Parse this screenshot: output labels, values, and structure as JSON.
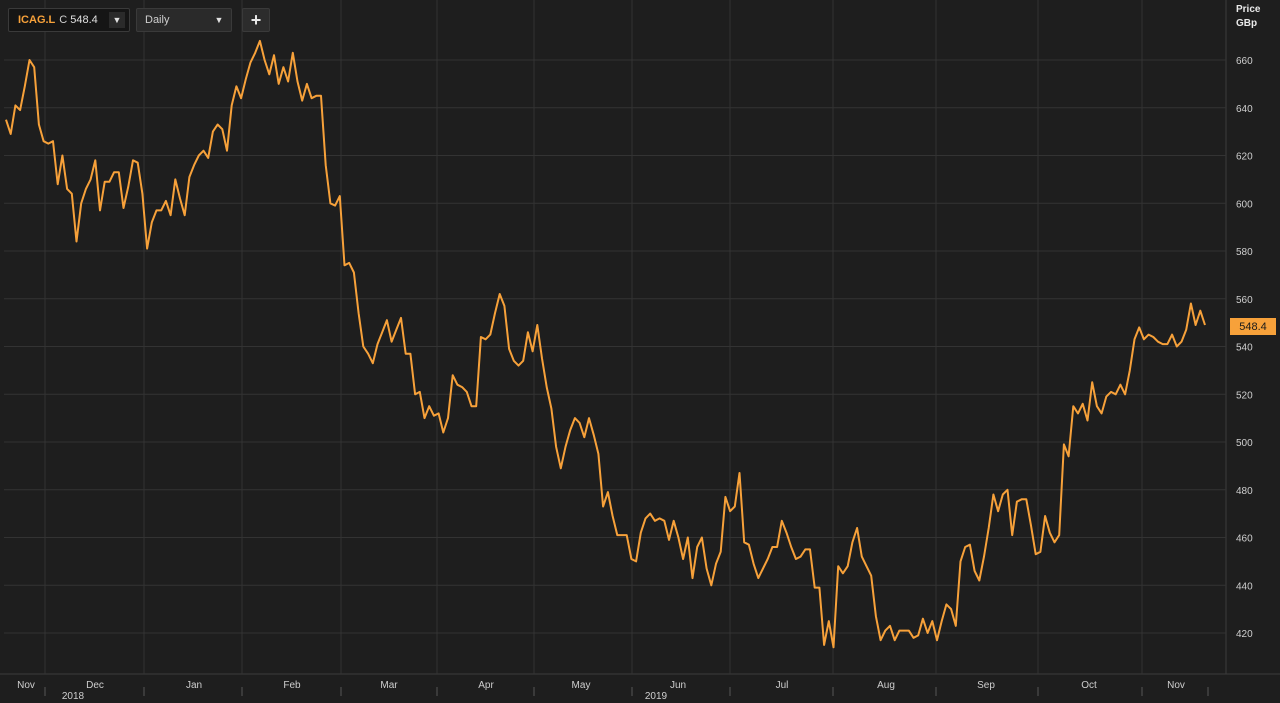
{
  "toolbar": {
    "ticker": "ICAG.L",
    "close_prefix": "C",
    "close_value": "548.4",
    "period": "Daily",
    "add_label": "+"
  },
  "axis": {
    "unit_line1": "Price",
    "unit_line2": "GBp"
  },
  "last_price_label": "548.4",
  "colors": {
    "background": "#1e1e1e",
    "line": "#f7a13a",
    "grid": "#333333"
  },
  "chart_data": {
    "type": "line",
    "ylabel": "Price GBp",
    "ylim": [
      405,
      672
    ],
    "y_ticks": [
      420,
      440,
      460,
      480,
      500,
      520,
      540,
      560,
      580,
      600,
      620,
      640,
      660
    ],
    "x_ticks": [
      "Nov",
      "Dec",
      "Jan",
      "Feb",
      "Mar",
      "Apr",
      "May",
      "Jun",
      "Jul",
      "Aug",
      "Sep",
      "Oct",
      "Nov"
    ],
    "year_labels": [
      {
        "label": "2018",
        "month_index": 1
      },
      {
        "label": "2019",
        "month_index": 7
      }
    ],
    "grid": true,
    "last_value": 548.4,
    "series": [
      {
        "values": [
          635,
          629,
          641,
          639,
          649,
          660,
          657,
          633,
          626,
          625,
          626,
          608,
          620,
          606,
          604,
          584,
          600,
          606,
          610,
          618,
          597,
          609,
          609,
          613,
          613,
          598,
          607,
          618,
          617,
          604,
          581,
          592,
          597,
          597,
          601,
          595,
          610,
          602,
          595,
          611,
          616,
          620,
          622,
          619,
          630,
          633,
          631,
          622,
          641,
          649,
          644,
          652,
          659,
          663,
          668,
          660,
          654,
          662,
          650,
          657,
          651,
          663,
          651,
          643,
          650,
          644,
          645,
          645,
          616,
          600,
          599,
          603,
          574,
          575,
          571,
          554,
          540,
          537,
          533,
          541,
          546,
          551,
          542,
          547,
          552,
          537,
          537,
          520,
          521,
          510,
          515,
          511,
          512,
          504,
          510,
          528,
          524,
          523,
          521,
          515,
          515,
          544,
          543,
          545,
          554,
          562,
          557,
          539,
          534,
          532,
          534,
          546,
          538,
          549,
          535,
          523,
          514,
          498,
          489,
          498,
          505,
          510,
          508,
          502,
          510,
          503,
          495,
          473,
          479,
          469,
          461,
          461,
          461,
          451,
          450,
          462,
          468,
          470,
          467,
          468,
          467,
          459,
          467,
          460,
          451,
          460,
          443,
          456,
          460,
          447,
          440,
          449,
          454,
          477,
          471,
          473,
          487,
          458,
          457,
          449,
          443,
          447,
          451,
          456,
          456,
          467,
          462,
          456,
          451,
          452,
          455,
          455,
          439,
          439,
          415,
          425,
          414,
          448,
          445,
          448,
          458,
          464,
          452,
          448,
          444,
          427,
          417,
          421,
          423,
          417,
          421,
          421,
          421,
          418,
          419,
          426,
          420,
          425,
          417,
          425,
          432,
          430,
          423,
          450,
          456,
          457,
          446,
          442,
          452,
          464,
          478,
          471,
          478,
          480,
          461,
          475,
          476,
          476,
          465,
          453,
          454,
          469,
          462,
          458,
          461,
          499,
          494,
          515,
          512,
          516,
          509,
          525,
          515,
          512,
          519,
          521,
          520,
          524,
          520,
          530,
          543,
          548,
          543,
          545,
          544,
          542,
          541,
          541,
          545,
          540,
          542,
          547,
          558,
          549,
          555,
          549
        ]
      }
    ]
  }
}
